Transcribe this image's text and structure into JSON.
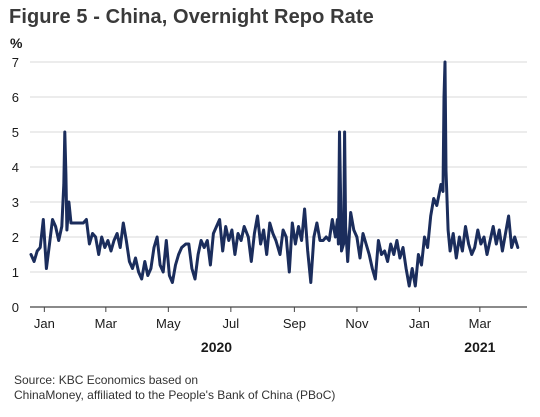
{
  "title": "Figure 5 - China, Overnight Repo Rate",
  "source": {
    "line1": "Source: KBC Economics based on",
    "line2": "ChinaMoney, affiliated to the People's Bank of China (PBoC)"
  },
  "chart_data": {
    "type": "line",
    "title": "Figure 5 - China, Overnight Repo Rate",
    "ylabel": "%",
    "xlabel": "",
    "ylim": [
      0,
      7
    ],
    "yticks": [
      0,
      1,
      2,
      3,
      4,
      5,
      6,
      7
    ],
    "xlim": [
      "2020-01-01",
      "2021-04-30"
    ],
    "grid": true,
    "line_color": "#1b2d5c",
    "xticks": [
      {
        "date": "2020-01-15",
        "label": "Jan"
      },
      {
        "date": "2020-03-15",
        "label": "Mar"
      },
      {
        "date": "2020-05-15",
        "label": "May"
      },
      {
        "date": "2020-07-15",
        "label": "Jul"
      },
      {
        "date": "2020-09-15",
        "label": "Sep"
      },
      {
        "date": "2020-11-15",
        "label": "Nov"
      },
      {
        "date": "2021-01-15",
        "label": "Jan"
      },
      {
        "date": "2021-03-15",
        "label": "Mar"
      }
    ],
    "year_labels": [
      {
        "date": "2020-07-01",
        "label": "2020"
      },
      {
        "date": "2021-03-15",
        "label": "2021"
      }
    ],
    "series": [
      {
        "x": [
          "2020-01-02",
          "2020-01-05",
          "2020-01-08",
          "2020-01-11",
          "2020-01-14",
          "2020-01-17",
          "2020-01-20",
          "2020-01-23",
          "2020-01-26",
          "2020-01-29",
          "2020-02-01",
          "2020-02-03",
          "2020-02-04",
          "2020-02-05",
          "2020-02-06",
          "2020-02-08",
          "2020-02-10",
          "2020-02-13",
          "2020-02-16",
          "2020-02-19",
          "2020-02-22",
          "2020-02-25",
          "2020-02-28",
          "2020-03-02",
          "2020-03-05",
          "2020-03-08",
          "2020-03-11",
          "2020-03-14",
          "2020-03-17",
          "2020-03-20",
          "2020-03-23",
          "2020-03-26",
          "2020-03-29",
          "2020-04-01",
          "2020-04-04",
          "2020-04-07",
          "2020-04-10",
          "2020-04-13",
          "2020-04-16",
          "2020-04-19",
          "2020-04-22",
          "2020-04-25",
          "2020-04-28",
          "2020-05-01",
          "2020-05-04",
          "2020-05-07",
          "2020-05-10",
          "2020-05-13",
          "2020-05-16",
          "2020-05-19",
          "2020-05-22",
          "2020-05-25",
          "2020-05-28",
          "2020-06-01",
          "2020-06-04",
          "2020-06-07",
          "2020-06-10",
          "2020-06-13",
          "2020-06-16",
          "2020-06-19",
          "2020-06-22",
          "2020-06-25",
          "2020-06-28",
          "2020-07-01",
          "2020-07-04",
          "2020-07-07",
          "2020-07-10",
          "2020-07-13",
          "2020-07-16",
          "2020-07-19",
          "2020-07-22",
          "2020-07-25",
          "2020-07-28",
          "2020-08-01",
          "2020-08-04",
          "2020-08-07",
          "2020-08-10",
          "2020-08-13",
          "2020-08-16",
          "2020-08-19",
          "2020-08-22",
          "2020-08-25",
          "2020-08-28",
          "2020-09-01",
          "2020-09-04",
          "2020-09-07",
          "2020-09-10",
          "2020-09-13",
          "2020-09-16",
          "2020-09-19",
          "2020-09-22",
          "2020-09-25",
          "2020-09-28",
          "2020-10-01",
          "2020-10-04",
          "2020-10-07",
          "2020-10-10",
          "2020-10-13",
          "2020-10-16",
          "2020-10-19",
          "2020-10-22",
          "2020-10-25",
          "2020-10-27",
          "2020-10-28",
          "2020-10-29",
          "2020-10-31",
          "2020-11-02",
          "2020-11-03",
          "2020-11-04",
          "2020-11-06",
          "2020-11-09",
          "2020-11-12",
          "2020-11-15",
          "2020-11-18",
          "2020-11-21",
          "2020-11-24",
          "2020-11-27",
          "2020-11-30",
          "2020-12-03",
          "2020-12-06",
          "2020-12-09",
          "2020-12-12",
          "2020-12-15",
          "2020-12-18",
          "2020-12-21",
          "2020-12-24",
          "2020-12-27",
          "2020-12-30",
          "2021-01-02",
          "2021-01-05",
          "2021-01-08",
          "2021-01-11",
          "2021-01-14",
          "2021-01-17",
          "2021-01-20",
          "2021-01-23",
          "2021-01-26",
          "2021-01-29",
          "2021-02-01",
          "2021-02-03",
          "2021-02-05",
          "2021-02-07",
          "2021-02-08",
          "2021-02-09",
          "2021-02-10",
          "2021-02-12",
          "2021-02-14",
          "2021-02-17",
          "2021-02-20",
          "2021-02-23",
          "2021-02-26",
          "2021-03-01",
          "2021-03-04",
          "2021-03-07",
          "2021-03-10",
          "2021-03-13",
          "2021-03-16",
          "2021-03-19",
          "2021-03-22",
          "2021-03-25",
          "2021-03-28",
          "2021-03-31",
          "2021-04-03",
          "2021-04-06",
          "2021-04-09",
          "2021-04-12",
          "2021-04-15",
          "2021-04-18",
          "2021-04-21"
        ],
        "values": [
          1.5,
          1.3,
          1.6,
          1.7,
          2.5,
          1.1,
          1.8,
          2.5,
          2.3,
          1.9,
          2.3,
          3.5,
          5.0,
          3.8,
          2.2,
          3.0,
          2.4,
          2.4,
          2.4,
          2.4,
          2.4,
          2.5,
          1.8,
          2.1,
          2.0,
          1.5,
          2.0,
          1.7,
          1.9,
          1.6,
          1.9,
          2.1,
          1.7,
          2.4,
          1.9,
          1.3,
          1.1,
          1.4,
          1.0,
          0.8,
          1.3,
          0.9,
          1.1,
          1.7,
          2.0,
          1.2,
          1.0,
          1.9,
          0.9,
          0.7,
          1.2,
          1.5,
          1.7,
          1.8,
          1.8,
          1.1,
          0.8,
          1.5,
          1.9,
          1.7,
          1.9,
          1.2,
          2.1,
          2.3,
          2.5,
          1.6,
          2.3,
          1.9,
          2.2,
          1.5,
          2.1,
          1.9,
          2.3,
          2.0,
          1.3,
          2.1,
          2.6,
          1.8,
          2.2,
          1.5,
          2.4,
          2.1,
          1.9,
          1.5,
          2.2,
          2.0,
          1.0,
          2.4,
          1.8,
          2.3,
          1.9,
          2.8,
          1.6,
          0.7,
          2.0,
          2.4,
          1.9,
          1.9,
          2.0,
          1.9,
          2.5,
          2.0,
          2.5,
          1.8,
          5.0,
          1.6,
          1.8,
          5.0,
          2.3,
          1.3,
          2.7,
          2.2,
          2.0,
          1.4,
          2.1,
          1.8,
          1.5,
          1.1,
          0.8,
          1.9,
          1.5,
          1.6,
          1.3,
          1.8,
          1.5,
          1.9,
          1.4,
          1.7,
          1.1,
          0.6,
          1.1,
          0.6,
          1.5,
          1.2,
          2.0,
          1.7,
          2.6,
          3.1,
          2.9,
          3.2,
          3.5,
          3.3,
          6.0,
          7.0,
          3.9,
          2.2,
          1.6,
          2.1,
          1.4,
          2.0,
          1.6,
          2.3,
          1.8,
          1.5,
          1.7,
          2.2,
          1.8,
          2.0,
          1.5,
          1.9,
          2.3,
          1.8,
          2.2,
          1.6,
          2.1,
          2.6,
          1.7,
          2.0,
          1.7
        ]
      }
    ]
  }
}
